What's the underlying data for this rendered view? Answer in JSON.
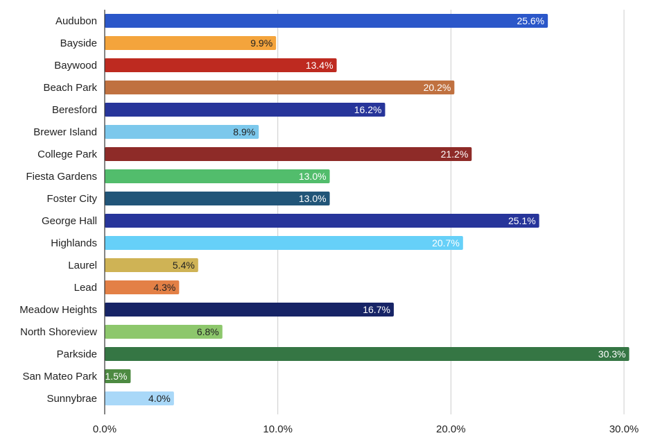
{
  "chart_data": {
    "type": "bar",
    "orientation": "horizontal",
    "title": "",
    "xlabel": "",
    "ylabel": "",
    "xlim": [
      0,
      30
    ],
    "x_ticks": [
      0,
      10,
      20,
      30
    ],
    "x_tick_labels": [
      "0.0%",
      "10.0%",
      "20.0%",
      "30.0%"
    ],
    "grid": "vertical",
    "legend": "none",
    "categories": [
      "Audubon",
      "Bayside",
      "Baywood",
      "Beach Park",
      "Beresford",
      "Brewer Island",
      "College Park",
      "Fiesta Gardens",
      "Foster City",
      "George Hall",
      "Highlands",
      "Laurel",
      "Lead",
      "Meadow Heights",
      "North Shoreview",
      "Parkside",
      "San Mateo Park",
      "Sunnybrae"
    ],
    "values": [
      25.6,
      9.9,
      13.4,
      20.2,
      16.2,
      8.9,
      21.2,
      13.0,
      13.0,
      25.1,
      20.7,
      5.4,
      4.3,
      16.7,
      6.8,
      30.3,
      1.5,
      4.0
    ],
    "value_labels": [
      "25.6%",
      "9.9%",
      "13.4%",
      "20.2%",
      "16.2%",
      "8.9%",
      "21.2%",
      "13.0%",
      "13.0%",
      "25.1%",
      "20.7%",
      "5.4%",
      "4.3%",
      "16.7%",
      "6.8%",
      "30.3%",
      "1.5%",
      "4.0%"
    ],
    "colors": [
      "#2b57c9",
      "#f4a43c",
      "#be2a20",
      "#c07140",
      "#27359a",
      "#7cc8ec",
      "#8e2b28",
      "#52bd6c",
      "#215578",
      "#27359a",
      "#66d0f8",
      "#cfb355",
      "#e38046",
      "#172466",
      "#8dc76c",
      "#357644",
      "#4d8a42",
      "#a9d8f8"
    ],
    "label_colors": [
      "#ffffff",
      "#222222",
      "#ffffff",
      "#ffffff",
      "#ffffff",
      "#222222",
      "#ffffff",
      "#ffffff",
      "#ffffff",
      "#ffffff",
      "#ffffff",
      "#222222",
      "#222222",
      "#ffffff",
      "#222222",
      "#ffffff",
      "#ffffff",
      "#222222"
    ]
  }
}
